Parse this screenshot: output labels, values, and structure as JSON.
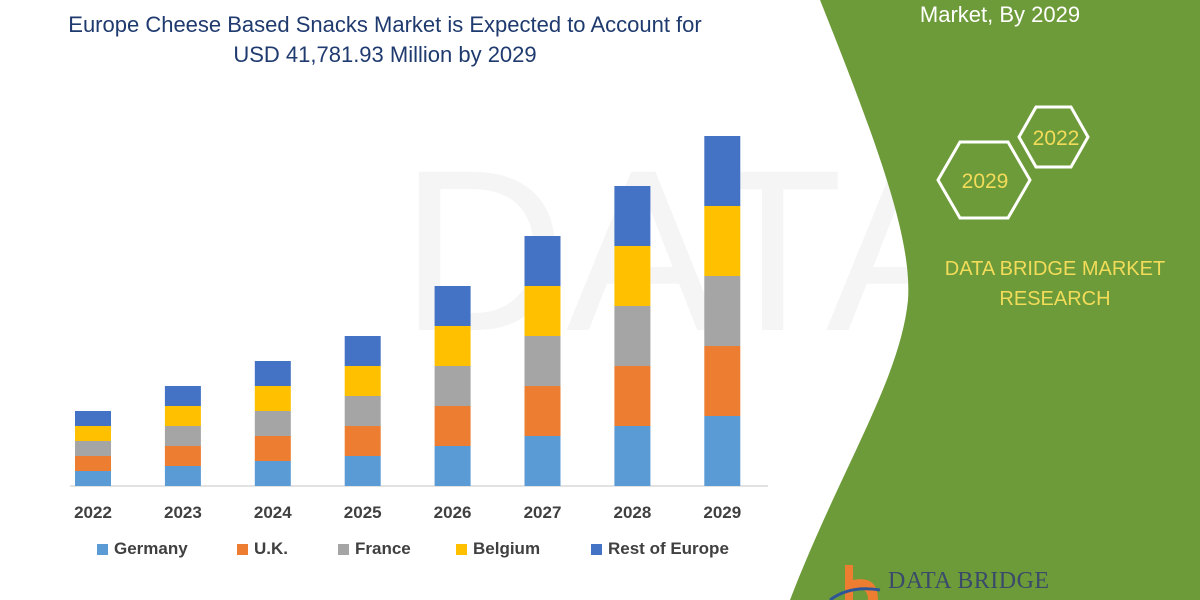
{
  "title_line1": "Europe Cheese Based Snacks Market is Expected to Account for",
  "title_line2": "USD 41,781.93 Million by 2029",
  "right_panel": {
    "title_fragment": "Market, By 2029",
    "hex_2022": "2022",
    "hex_2029": "2029",
    "brand": "DATA BRIDGE MARKET RESEARCH",
    "logo_text": "DATA BRIDGE",
    "green": "#6e9b39",
    "hex_text_color": "#f2dc5a"
  },
  "chart_data": {
    "type": "bar",
    "stacked": true,
    "categories": [
      "2022",
      "2023",
      "2024",
      "2025",
      "2026",
      "2027",
      "2028",
      "2029"
    ],
    "series": [
      {
        "name": "Germany",
        "color": "#5b9bd5",
        "values": [
          15,
          20,
          25,
          30,
          40,
          50,
          60,
          70
        ]
      },
      {
        "name": "U.K.",
        "color": "#ed7d31",
        "values": [
          15,
          20,
          25,
          30,
          40,
          50,
          60,
          70
        ]
      },
      {
        "name": "France",
        "color": "#a5a5a5",
        "values": [
          15,
          20,
          25,
          30,
          40,
          50,
          60,
          70
        ]
      },
      {
        "name": "Belgium",
        "color": "#ffc000",
        "values": [
          15,
          20,
          25,
          30,
          40,
          50,
          60,
          70
        ]
      },
      {
        "name": "Rest of Europe",
        "color": "#4472c4",
        "values": [
          15,
          20,
          25,
          30,
          40,
          50,
          60,
          70
        ]
      }
    ],
    "title": "Europe Cheese Based Snacks Market is Expected to Account for USD 41,781.93 Million by 2029",
    "xlabel": "",
    "ylabel": "",
    "ylim": [
      0,
      360
    ],
    "grid": false,
    "legend": "bottom"
  }
}
